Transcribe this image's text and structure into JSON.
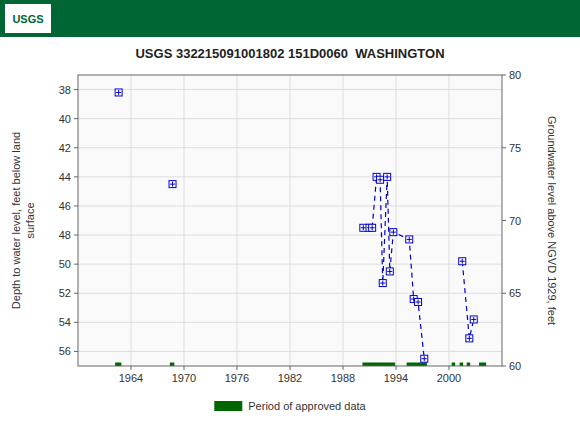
{
  "chart_data": {
    "type": "line",
    "title": "USGS 332215091001802 151D0060  WASHINGTON",
    "logo_text": "USGS",
    "header_color": "#006633",
    "xlim": [
      1958,
      2006
    ],
    "xticks": [
      1964,
      1970,
      1976,
      1982,
      1988,
      1994,
      2000
    ],
    "ylim": [
      57,
      37
    ],
    "yticks": [
      38,
      40,
      42,
      44,
      46,
      48,
      50,
      52,
      54,
      56
    ],
    "y2lim": [
      60,
      80
    ],
    "y2ticks": [
      60,
      65,
      70,
      75,
      80
    ],
    "ylabel": "Depth to water level, feet below land\nsurface",
    "y2label": "Groundwater level above NGVD 1929, feet",
    "grid": true,
    "legend": "bottom",
    "series": [
      {
        "color": "#0000cc",
        "marker": "square",
        "line_style": "dashed",
        "x": [
          1962.6
        ],
        "values": [
          38.2
        ]
      },
      {
        "color": "#0000cc",
        "marker": "square",
        "line_style": "dashed",
        "x": [
          1968.7
        ],
        "values": [
          44.5
        ]
      },
      {
        "color": "#0000cc",
        "marker": "square",
        "line_style": "dashed",
        "x": [
          1990.3,
          1991.0,
          1991.3,
          1991.8,
          1992.2,
          1992.5,
          1993.0,
          1993.3,
          1993.7,
          1995.5,
          1996.0,
          1996.5,
          1997.2
        ],
        "values": [
          47.5,
          47.5,
          47.5,
          44.0,
          44.2,
          51.3,
          44.0,
          50.5,
          47.8,
          48.3,
          52.4,
          52.6,
          56.5
        ]
      },
      {
        "color": "#0000cc",
        "marker": "square",
        "line_style": "dashed",
        "x": [
          2001.5,
          2002.3,
          2002.8
        ],
        "values": [
          49.8,
          55.1,
          53.8
        ]
      }
    ],
    "approved_periods": {
      "name": "Period of approved data",
      "color": "#006600",
      "y": 57.0,
      "start": [
        1962.2,
        1968.4,
        1990.2,
        1995.2,
        2000.3,
        2001.2,
        2002.0,
        2003.4
      ],
      "end": [
        1962.9,
        1968.9,
        1993.9,
        1997.5,
        2000.7,
        2001.6,
        2002.4,
        2004.2
      ]
    }
  }
}
